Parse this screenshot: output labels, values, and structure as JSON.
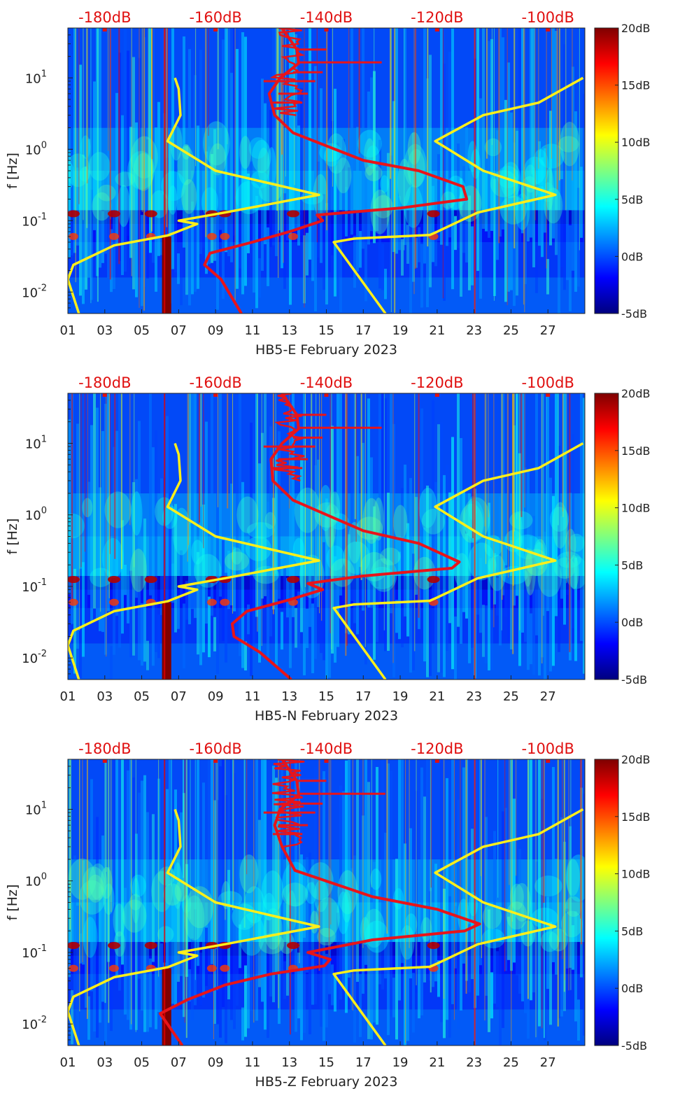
{
  "colors": {
    "jet": [
      "#00007f",
      "#0000ff",
      "#007fff",
      "#00ffff",
      "#7fff7f",
      "#ffff00",
      "#ff7f00",
      "#ff0000",
      "#7f0000"
    ],
    "yellow_curve": "#ffef1a",
    "red_curve": "#e8141a",
    "db_text": "#e01010"
  },
  "chart_data": [
    {
      "type": "heatmap",
      "title": "HB5-E February 2023",
      "xlabel": "HB5-E February 2023",
      "ylabel": "f [Hz]",
      "xlim": [
        1,
        29
      ],
      "ylim": [
        0.005,
        50
      ],
      "yscale": "log",
      "xticks": [
        "01",
        "03",
        "05",
        "07",
        "09",
        "11",
        "13",
        "15",
        "17",
        "19",
        "21",
        "23",
        "25",
        "27"
      ],
      "xtick_values": [
        1,
        3,
        5,
        7,
        9,
        11,
        13,
        15,
        17,
        19,
        21,
        23,
        25,
        27
      ],
      "yticks": [
        "10^-2",
        "10^-1",
        "10^0",
        "10^1"
      ],
      "ytick_values": [
        0.01,
        0.1,
        1,
        10
      ],
      "top_axis": {
        "labels": [
          "-180dB",
          "-160dB",
          "-140dB",
          "-120dB",
          "-100dB"
        ],
        "day_positions": [
          3,
          9,
          15,
          21,
          27
        ]
      },
      "colorbar": {
        "labels": [
          "20dB",
          "15dB",
          "10dB",
          "5dB",
          "0dB",
          "-5dB"
        ],
        "range": [
          -5,
          20
        ]
      },
      "yellow_curves": [
        [
          [
            1.6,
            0.005
          ],
          [
            1.0,
            0.015
          ],
          [
            1.3,
            0.024
          ],
          [
            3.5,
            0.045
          ],
          [
            6.4,
            0.062
          ],
          [
            8.0,
            0.09
          ],
          [
            7.0,
            0.1
          ],
          [
            9.5,
            0.13
          ],
          [
            14.6,
            0.23
          ],
          [
            9.0,
            0.5
          ],
          [
            6.4,
            1.3
          ],
          [
            7.1,
            3.0
          ],
          [
            7.0,
            7.0
          ],
          [
            6.8,
            10.0
          ]
        ],
        [
          [
            18.2,
            0.005
          ],
          [
            15.4,
            0.05
          ],
          [
            16.5,
            0.056
          ],
          [
            20.6,
            0.063
          ],
          [
            21.0,
            0.07
          ],
          [
            23.2,
            0.13
          ],
          [
            27.4,
            0.23
          ],
          [
            23.5,
            0.5
          ],
          [
            20.9,
            1.3
          ],
          [
            23.5,
            3.0
          ],
          [
            26.5,
            4.5
          ],
          [
            28.9,
            10.0
          ]
        ]
      ],
      "red_curve": [
        [
          10.4,
          0.005
        ],
        [
          9.3,
          0.015
        ],
        [
          8.4,
          0.024
        ],
        [
          8.7,
          0.035
        ],
        [
          11.0,
          0.05
        ],
        [
          13.0,
          0.07
        ],
        [
          14.8,
          0.1
        ],
        [
          14.5,
          0.12
        ],
        [
          19.0,
          0.15
        ],
        [
          22.6,
          0.2
        ],
        [
          22.4,
          0.3
        ],
        [
          20.0,
          0.5
        ],
        [
          17.0,
          0.7
        ],
        [
          13.2,
          1.7
        ],
        [
          12.2,
          3.0
        ],
        [
          11.9,
          6.0
        ],
        [
          12.5,
          10.0
        ],
        [
          13.5,
          16.0
        ],
        [
          13.4,
          25.0
        ],
        [
          12.6,
          50.0
        ]
      ],
      "red_spikes": [
        [
          13.5,
          18.0,
          16.5
        ],
        [
          13.4,
          15.0,
          25.0
        ],
        [
          13.2,
          14.8,
          12.0
        ],
        [
          12.4,
          14.0,
          6.0
        ],
        [
          12.1,
          13.7,
          4.5
        ],
        [
          11.6,
          14.4,
          9.0
        ]
      ]
    },
    {
      "type": "heatmap",
      "title": "HB5-N February 2023",
      "xlabel": "HB5-N February 2023",
      "ylabel": "f [Hz]",
      "xlim": [
        1,
        29
      ],
      "ylim": [
        0.005,
        50
      ],
      "yscale": "log",
      "xticks": [
        "01",
        "03",
        "05",
        "07",
        "09",
        "11",
        "13",
        "15",
        "17",
        "19",
        "21",
        "23",
        "25",
        "27"
      ],
      "xtick_values": [
        1,
        3,
        5,
        7,
        9,
        11,
        13,
        15,
        17,
        19,
        21,
        23,
        25,
        27
      ],
      "yticks": [
        "10^-2",
        "10^-1",
        "10^0",
        "10^1"
      ],
      "ytick_values": [
        0.01,
        0.1,
        1,
        10
      ],
      "top_axis": {
        "labels": [
          "-180dB",
          "-160dB",
          "-140dB",
          "-120dB",
          "-100dB"
        ],
        "day_positions": [
          3,
          9,
          15,
          21,
          27
        ]
      },
      "colorbar": {
        "labels": [
          "20dB",
          "15dB",
          "10dB",
          "5dB",
          "0dB",
          "-5dB"
        ],
        "range": [
          -5,
          20
        ]
      },
      "yellow_curves": [
        [
          [
            1.6,
            0.005
          ],
          [
            1.0,
            0.015
          ],
          [
            1.3,
            0.024
          ],
          [
            3.5,
            0.045
          ],
          [
            6.4,
            0.062
          ],
          [
            8.0,
            0.09
          ],
          [
            7.0,
            0.1
          ],
          [
            9.5,
            0.13
          ],
          [
            14.6,
            0.23
          ],
          [
            9.0,
            0.5
          ],
          [
            6.4,
            1.3
          ],
          [
            7.1,
            3.0
          ],
          [
            7.0,
            7.0
          ],
          [
            6.8,
            10.0
          ]
        ],
        [
          [
            18.2,
            0.005
          ],
          [
            15.4,
            0.05
          ],
          [
            16.5,
            0.056
          ],
          [
            20.6,
            0.063
          ],
          [
            21.0,
            0.07
          ],
          [
            23.2,
            0.13
          ],
          [
            27.4,
            0.23
          ],
          [
            23.5,
            0.5
          ],
          [
            20.9,
            1.3
          ],
          [
            23.5,
            3.0
          ],
          [
            26.5,
            4.5
          ],
          [
            28.9,
            10.0
          ]
        ]
      ],
      "red_curve": [
        [
          13.1,
          0.005
        ],
        [
          11.4,
          0.012
        ],
        [
          10.0,
          0.02
        ],
        [
          9.9,
          0.03
        ],
        [
          10.7,
          0.045
        ],
        [
          13.0,
          0.065
        ],
        [
          14.8,
          0.09
        ],
        [
          14.0,
          0.11
        ],
        [
          17.0,
          0.14
        ],
        [
          21.8,
          0.18
        ],
        [
          22.2,
          0.22
        ],
        [
          20.0,
          0.4
        ],
        [
          17.0,
          0.6
        ],
        [
          13.2,
          1.6
        ],
        [
          12.1,
          3.0
        ],
        [
          12.0,
          6.0
        ],
        [
          12.6,
          10.0
        ],
        [
          13.5,
          16.0
        ],
        [
          13.4,
          25.0
        ],
        [
          12.6,
          50.0
        ]
      ],
      "red_spikes": [
        [
          13.5,
          18.0,
          16.5
        ],
        [
          13.4,
          15.0,
          25.0
        ],
        [
          13.2,
          14.8,
          12.0
        ],
        [
          12.4,
          14.0,
          6.0
        ],
        [
          12.1,
          13.7,
          4.5
        ],
        [
          11.6,
          14.4,
          9.0
        ]
      ]
    },
    {
      "type": "heatmap",
      "title": "HB5-Z February 2023",
      "xlabel": "HB5-Z February 2023",
      "ylabel": "f [Hz]",
      "xlim": [
        1,
        29
      ],
      "ylim": [
        0.005,
        50
      ],
      "yscale": "log",
      "xticks": [
        "01",
        "03",
        "05",
        "07",
        "09",
        "11",
        "13",
        "15",
        "17",
        "19",
        "21",
        "23",
        "25",
        "27"
      ],
      "xtick_values": [
        1,
        3,
        5,
        7,
        9,
        11,
        13,
        15,
        17,
        19,
        21,
        23,
        25,
        27
      ],
      "yticks": [
        "10^-2",
        "10^-1",
        "10^0",
        "10^1"
      ],
      "ytick_values": [
        0.01,
        0.1,
        1,
        10
      ],
      "top_axis": {
        "labels": [
          "-180dB",
          "-160dB",
          "-140dB",
          "-120dB",
          "-100dB"
        ],
        "day_positions": [
          3,
          9,
          15,
          21,
          27
        ]
      },
      "colorbar": {
        "labels": [
          "20dB",
          "15dB",
          "10dB",
          "5dB",
          "0dB",
          "-5dB"
        ],
        "range": [
          -5,
          20
        ]
      },
      "yellow_curves": [
        [
          [
            1.6,
            0.005
          ],
          [
            1.0,
            0.015
          ],
          [
            1.3,
            0.024
          ],
          [
            3.5,
            0.045
          ],
          [
            6.4,
            0.062
          ],
          [
            8.0,
            0.09
          ],
          [
            7.0,
            0.1
          ],
          [
            9.5,
            0.13
          ],
          [
            14.6,
            0.23
          ],
          [
            9.0,
            0.5
          ],
          [
            6.4,
            1.3
          ],
          [
            7.1,
            3.0
          ],
          [
            7.0,
            7.0
          ],
          [
            6.8,
            10.0
          ]
        ],
        [
          [
            18.2,
            0.005
          ],
          [
            15.4,
            0.05
          ],
          [
            16.5,
            0.056
          ],
          [
            20.6,
            0.063
          ],
          [
            21.0,
            0.07
          ],
          [
            23.2,
            0.13
          ],
          [
            27.4,
            0.23
          ],
          [
            23.5,
            0.5
          ],
          [
            20.9,
            1.3
          ],
          [
            23.5,
            3.0
          ],
          [
            26.5,
            4.5
          ],
          [
            28.9,
            10.0
          ]
        ]
      ],
      "red_curve": [
        [
          7.2,
          0.005
        ],
        [
          6.0,
          0.014
        ],
        [
          7.5,
          0.022
        ],
        [
          9.5,
          0.035
        ],
        [
          12.0,
          0.05
        ],
        [
          14.9,
          0.065
        ],
        [
          15.2,
          0.08
        ],
        [
          14.0,
          0.1
        ],
        [
          17.5,
          0.15
        ],
        [
          22.5,
          0.2
        ],
        [
          23.3,
          0.25
        ],
        [
          21.0,
          0.4
        ],
        [
          17.5,
          0.6
        ],
        [
          13.3,
          1.4
        ],
        [
          12.6,
          3.0
        ],
        [
          12.2,
          6.0
        ],
        [
          12.5,
          10.0
        ],
        [
          13.5,
          16.0
        ],
        [
          13.4,
          25.0
        ],
        [
          12.6,
          50.0
        ]
      ],
      "red_spikes": [
        [
          13.5,
          18.2,
          16.5
        ],
        [
          13.4,
          15.0,
          25.0
        ],
        [
          13.2,
          14.8,
          12.0
        ],
        [
          12.4,
          14.0,
          6.0
        ],
        [
          12.1,
          13.7,
          4.5
        ],
        [
          11.6,
          14.4,
          9.0
        ]
      ]
    }
  ]
}
